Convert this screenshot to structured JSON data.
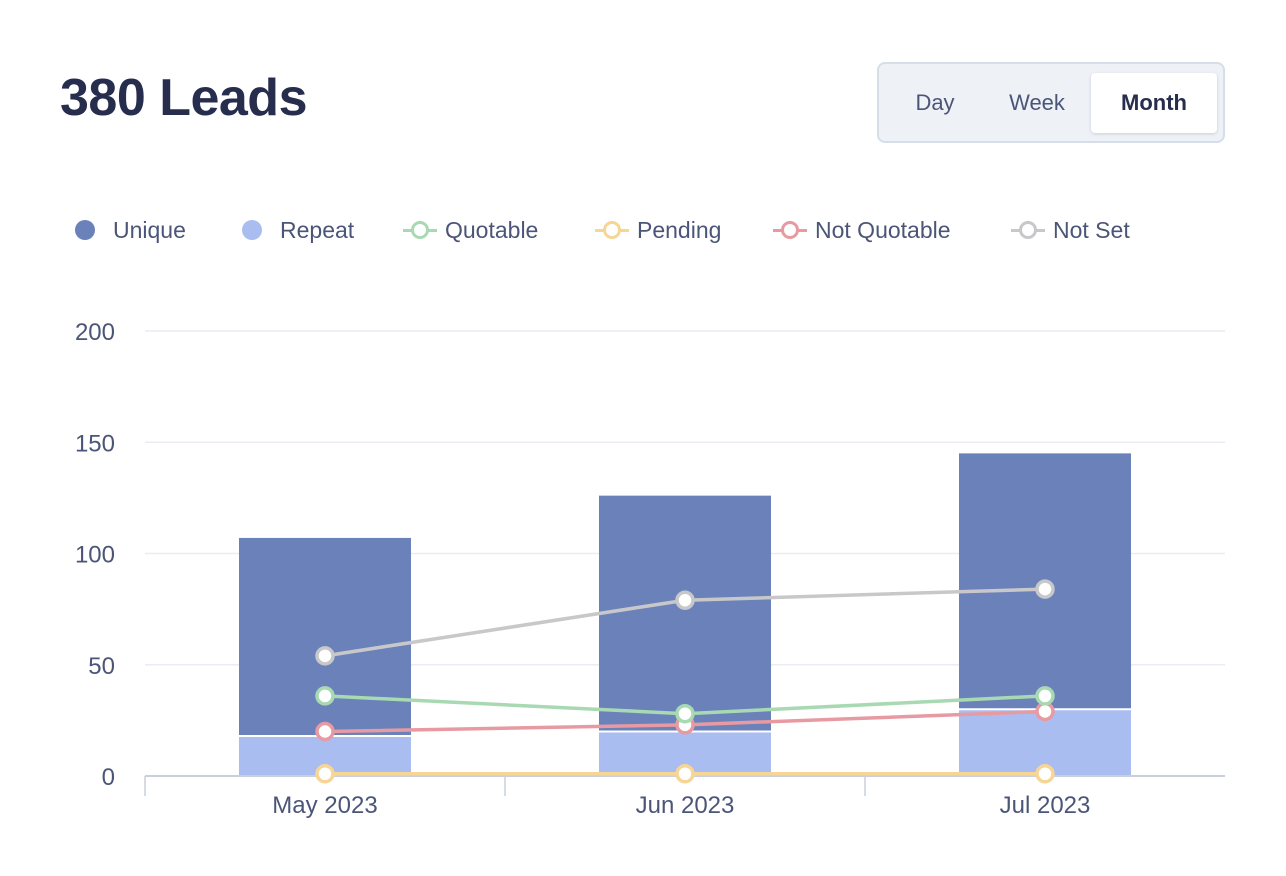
{
  "header": {
    "title": "380 Leads",
    "range_options": [
      "Day",
      "Week",
      "Month"
    ],
    "selected_range": "Month"
  },
  "legend": [
    {
      "label": "Unique",
      "kind": "bar",
      "color": "#6a82b9"
    },
    {
      "label": "Repeat",
      "kind": "bar",
      "color": "#a9bdf0"
    },
    {
      "label": "Quotable",
      "kind": "line",
      "color": "#a8d9b2"
    },
    {
      "label": "Pending",
      "kind": "line",
      "color": "#f6d595"
    },
    {
      "label": "Not Quotable",
      "kind": "line",
      "color": "#e79aa2"
    },
    {
      "label": "Not Set",
      "kind": "line",
      "color": "#c8c8cb"
    }
  ],
  "chart_data": {
    "type": "bar",
    "categories": [
      "May 2023",
      "Jun 2023",
      "Jul 2023"
    ],
    "ylim": [
      0,
      200
    ],
    "yticks": [
      0,
      50,
      100,
      150,
      200
    ],
    "grid": true,
    "legend_position": "top-left",
    "stacked_bars": [
      {
        "name": "Repeat",
        "values": [
          18,
          20,
          30
        ],
        "color": "#a9bdf0"
      },
      {
        "name": "Unique",
        "values": [
          89,
          106,
          115
        ],
        "color": "#6a82b9"
      }
    ],
    "lines": [
      {
        "name": "Not Set",
        "values": [
          54,
          79,
          84
        ],
        "color": "#c8c8cb"
      },
      {
        "name": "Quotable",
        "values": [
          36,
          28,
          36
        ],
        "color": "#a8d9b2"
      },
      {
        "name": "Not Quotable",
        "values": [
          20,
          23,
          29
        ],
        "color": "#e79aa2"
      },
      {
        "name": "Pending",
        "values": [
          1,
          1,
          1
        ],
        "color": "#f6d595"
      }
    ]
  }
}
